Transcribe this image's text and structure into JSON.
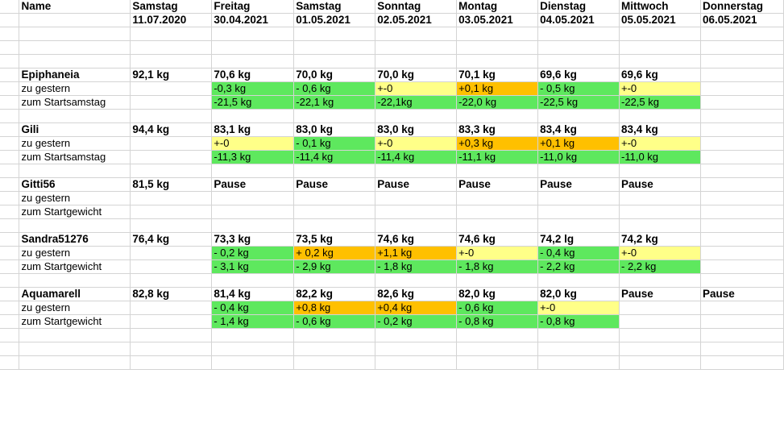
{
  "columns": {
    "headers": [
      "Name",
      "Samstag",
      "Freitag",
      "Samstag",
      "Sonntag",
      "Montag",
      "Dienstag",
      "Mittwoch",
      "Donnerstag"
    ],
    "dates": [
      "",
      "11.07.2020",
      "30.04.2021",
      "01.05.2021",
      "02.05.2021",
      "03.05.2021",
      "04.05.2021",
      "05.05.2021",
      "06.05.2021"
    ]
  },
  "colors": {
    "green": "#5ee85e",
    "yellow": "#ffff88",
    "orange": "#ffc000"
  },
  "people": [
    {
      "name": "Epiphaneia",
      "start": "92,1 kg",
      "weights": [
        "70,6 kg",
        "70,0 kg",
        "70,0 kg",
        "70,1 kg",
        "69,6 kg",
        "69,6 kg",
        ""
      ],
      "diff_label": "zu gestern",
      "diff": [
        {
          "v": "-0,3 kg",
          "c": "g"
        },
        {
          "v": "- 0,6 kg",
          "c": "g"
        },
        {
          "v": "+-0",
          "c": "y"
        },
        {
          "v": "+0,1 kg",
          "c": "o"
        },
        {
          "v": "- 0,5 kg",
          "c": "g"
        },
        {
          "v": "+-0",
          "c": "y"
        },
        {
          "v": "",
          "c": ""
        }
      ],
      "total_label": "zum Startsamstag",
      "total": [
        {
          "v": "-21,5 kg",
          "c": "g"
        },
        {
          "v": "-22,1 kg",
          "c": "g"
        },
        {
          "v": "-22,1kg",
          "c": "g"
        },
        {
          "v": "-22,0 kg",
          "c": "g"
        },
        {
          "v": "-22,5 kg",
          "c": "g"
        },
        {
          "v": "-22,5 kg",
          "c": "g"
        },
        {
          "v": "",
          "c": ""
        }
      ]
    },
    {
      "name": "Gili",
      "start": "94,4 kg",
      "weights": [
        "83,1 kg",
        "83,0 kg",
        "83,0 kg",
        "83,3 kg",
        "83,4 kg",
        "83,4 kg",
        ""
      ],
      "diff_label": "zu gestern",
      "diff": [
        {
          "v": "+-0",
          "c": "y"
        },
        {
          "v": "- 0,1 kg",
          "c": "g"
        },
        {
          "v": "+-0",
          "c": "y"
        },
        {
          "v": "+0,3 kg",
          "c": "o"
        },
        {
          "v": "+0,1 kg",
          "c": "o"
        },
        {
          "v": "+-0",
          "c": "y"
        },
        {
          "v": "",
          "c": ""
        }
      ],
      "total_label": "zum Startsamstag",
      "total": [
        {
          "v": "-11,3 kg",
          "c": "g"
        },
        {
          "v": "-11,4 kg",
          "c": "g"
        },
        {
          "v": "-11,4 kg",
          "c": "g"
        },
        {
          "v": "-11,1 kg",
          "c": "g"
        },
        {
          "v": "-11,0 kg",
          "c": "g"
        },
        {
          "v": "-11,0 kg",
          "c": "g"
        },
        {
          "v": "",
          "c": ""
        }
      ]
    },
    {
      "name": "Gitti56",
      "start": "81,5 kg",
      "weights": [
        "Pause",
        "Pause",
        "Pause",
        "Pause",
        "Pause",
        "Pause",
        ""
      ],
      "diff_label": "zu gestern",
      "diff": [
        {
          "v": "",
          "c": ""
        },
        {
          "v": "",
          "c": ""
        },
        {
          "v": "",
          "c": ""
        },
        {
          "v": "",
          "c": ""
        },
        {
          "v": "",
          "c": ""
        },
        {
          "v": "",
          "c": ""
        },
        {
          "v": "",
          "c": ""
        }
      ],
      "total_label": "zum Startgewicht",
      "total": [
        {
          "v": "",
          "c": ""
        },
        {
          "v": "",
          "c": ""
        },
        {
          "v": "",
          "c": ""
        },
        {
          "v": "",
          "c": ""
        },
        {
          "v": "",
          "c": ""
        },
        {
          "v": "",
          "c": ""
        },
        {
          "v": "",
          "c": ""
        }
      ]
    },
    {
      "name": "Sandra51276",
      "start": "76,4 kg",
      "weights": [
        "73,3 kg",
        "73,5 kg",
        "74,6 kg",
        "74,6 kg",
        "74,2 lg",
        "74,2 kg",
        ""
      ],
      "diff_label": "zu gestern",
      "diff": [
        {
          "v": "- 0,2 kg",
          "c": "g"
        },
        {
          "v": "+ 0,2 kg",
          "c": "o"
        },
        {
          "v": "+1,1 kg",
          "c": "o"
        },
        {
          "v": "+-0",
          "c": "y"
        },
        {
          "v": "- 0,4 kg",
          "c": "g"
        },
        {
          "v": "+-0",
          "c": "y"
        },
        {
          "v": "",
          "c": ""
        }
      ],
      "total_label": "zum Startgewicht",
      "total": [
        {
          "v": "- 3,1 kg",
          "c": "g"
        },
        {
          "v": "- 2,9 kg",
          "c": "g"
        },
        {
          "v": "- 1,8 kg",
          "c": "g"
        },
        {
          "v": "- 1,8 kg",
          "c": "g"
        },
        {
          "v": "- 2,2 kg",
          "c": "g"
        },
        {
          "v": "- 2,2 kg",
          "c": "g"
        },
        {
          "v": "",
          "c": ""
        }
      ]
    },
    {
      "name": "Aquamarell",
      "start": "82,8 kg",
      "weights": [
        "81,4 kg",
        "82,2 kg",
        "82,6 kg",
        "82,0 kg",
        "82,0 kg",
        "Pause",
        "Pause"
      ],
      "diff_label": "zu gestern",
      "diff": [
        {
          "v": "- 0,4 kg",
          "c": "g"
        },
        {
          "v": "+0,8 kg",
          "c": "o"
        },
        {
          "v": "+0,4 kg",
          "c": "o"
        },
        {
          "v": "- 0,6 kg",
          "c": "g"
        },
        {
          "v": "+-0",
          "c": "y"
        },
        {
          "v": "",
          "c": ""
        },
        {
          "v": "",
          "c": ""
        }
      ],
      "total_label": "zum Startgewicht",
      "total": [
        {
          "v": "- 1,4 kg",
          "c": "g"
        },
        {
          "v": "- 0,6 kg",
          "c": "g"
        },
        {
          "v": "- 0,2 kg",
          "c": "g"
        },
        {
          "v": "- 0,8 kg",
          "c": "g"
        },
        {
          "v": "- 0,8 kg",
          "c": "g"
        },
        {
          "v": "",
          "c": ""
        },
        {
          "v": "",
          "c": ""
        }
      ]
    }
  ]
}
